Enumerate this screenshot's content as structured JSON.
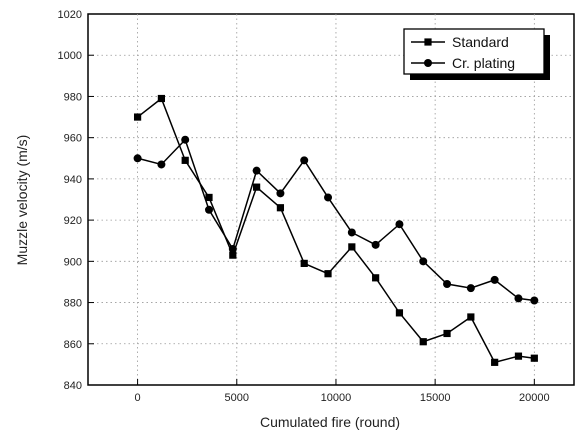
{
  "chart_data": {
    "type": "line",
    "xlabel": "Cumulated fire (round)",
    "ylabel": "Muzzle velocity (m/s)",
    "xlim": [
      -2500,
      22000
    ],
    "ylim": [
      840,
      1020
    ],
    "xticks": [
      0,
      5000,
      10000,
      15000,
      20000
    ],
    "yticks": [
      840,
      860,
      880,
      900,
      920,
      940,
      960,
      980,
      1000,
      1020
    ],
    "grid": true,
    "legend_position": "top-right",
    "series": [
      {
        "name": "Standard",
        "marker": "square",
        "x": [
          0,
          1200,
          2400,
          3600,
          4800,
          6000,
          7200,
          8400,
          9600,
          10800,
          12000,
          13200,
          14400,
          15600,
          16800,
          18000,
          19200,
          20000
        ],
        "y": [
          970,
          979,
          949,
          931,
          903,
          936,
          926,
          899,
          894,
          907,
          892,
          875,
          861,
          865,
          873,
          851,
          854,
          853
        ]
      },
      {
        "name": "Cr. plating",
        "marker": "circle",
        "x": [
          0,
          1200,
          2400,
          3600,
          4800,
          6000,
          7200,
          8400,
          9600,
          10800,
          12000,
          13200,
          14400,
          15600,
          16800,
          18000,
          19200,
          20000
        ],
        "y": [
          950,
          947,
          959,
          925,
          906,
          944,
          933,
          949,
          931,
          914,
          908,
          918,
          900,
          889,
          887,
          891,
          882,
          881
        ]
      }
    ]
  }
}
